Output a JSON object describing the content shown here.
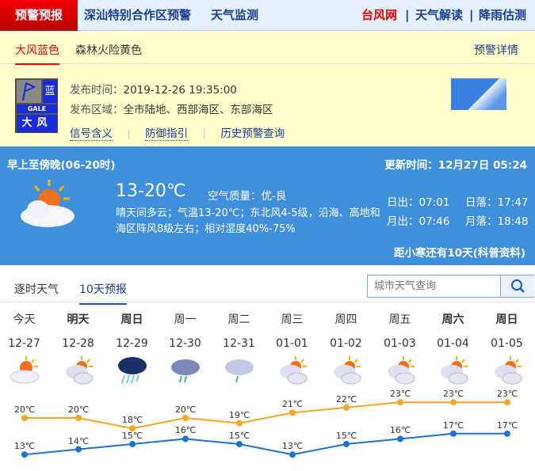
{
  "topnav": {
    "active": "预警预报",
    "left": [
      "深汕特别合作区预警",
      "天气监测"
    ],
    "right": [
      "台风网",
      "天气解读",
      "降雨估测"
    ]
  },
  "warning": {
    "tabs": [
      "大风蓝色",
      "森林火险黄色"
    ],
    "detail_link": "预警详情",
    "badge": {
      "level": "蓝",
      "en": "GALE",
      "name": "大风"
    },
    "time_label": "发布时间：",
    "time": "2019-12-26 19:35:00",
    "area_label": "发布区域：",
    "area": "全市陆地、西部海区、东部海区",
    "links": [
      "信号含义",
      "防御指引",
      "历史预警查询"
    ]
  },
  "weather": {
    "period": "早上至傍晚(06-20时)",
    "update": "更新时间：12月27日 05:24",
    "temp_range": "13-20℃",
    "aqi": "空气质量：优-良",
    "desc": "晴天间多云；气温13-20℃；东北风4-5级，沿海、高地和海区阵风8级左右；相对湿度40%-75%",
    "sunrise": "日出：07:01",
    "sunset": "日落：17:47",
    "moonrise": "月出：07:46",
    "moonset": "月落：18:48",
    "solar_term": "距小寒还有10天(科普资料)"
  },
  "tabs": [
    "逐时天气",
    "10天预报"
  ],
  "search": {
    "placeholder": "城市天气查询"
  },
  "forecast": [
    {
      "day": "今天",
      "date": "12-27",
      "icon": "sunny-cloudy",
      "high": "20℃",
      "low": "13℃",
      "hi": 20,
      "lo": 13
    },
    {
      "day": "明天",
      "date": "12-28",
      "icon": "partly-cloudy",
      "high": "20℃",
      "low": "14℃",
      "hi": 20,
      "lo": 14
    },
    {
      "day": "周日",
      "date": "12-29",
      "icon": "heavy-rain",
      "high": "18℃",
      "low": "15℃",
      "hi": 18,
      "lo": 15
    },
    {
      "day": "周一",
      "date": "12-30",
      "icon": "moderate-rain",
      "high": "20℃",
      "low": "16℃",
      "hi": 20,
      "lo": 16
    },
    {
      "day": "周二",
      "date": "12-31",
      "icon": "light-rain",
      "high": "19℃",
      "low": "15℃",
      "hi": 19,
      "lo": 15
    },
    {
      "day": "周三",
      "date": "01-01",
      "icon": "partly-cloudy",
      "high": "21℃",
      "low": "13℃",
      "hi": 21,
      "lo": 13
    },
    {
      "day": "周四",
      "date": "01-02",
      "icon": "partly-cloudy",
      "high": "22℃",
      "low": "15℃",
      "hi": 22,
      "lo": 15
    },
    {
      "day": "周五",
      "date": "01-03",
      "icon": "partly-cloudy",
      "high": "23℃",
      "low": "16℃",
      "hi": 23,
      "lo": 16
    },
    {
      "day": "周六",
      "date": "01-04",
      "icon": "partly-cloudy",
      "high": "23℃",
      "low": "17℃",
      "hi": 23,
      "lo": 17
    },
    {
      "day": "周日",
      "date": "01-05",
      "icon": "partly-cloudy",
      "high": "23℃",
      "low": "17℃",
      "hi": 23,
      "lo": 17
    }
  ],
  "colors": {
    "high": "#f5a623",
    "low": "#1a73d0",
    "accent": "#e00000"
  }
}
